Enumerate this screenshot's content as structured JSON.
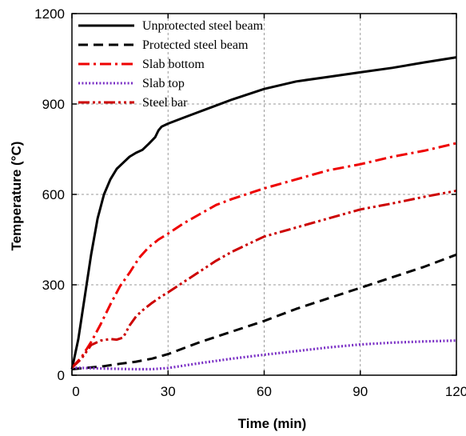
{
  "chart_data": {
    "type": "line",
    "xlabel": "Time (min)",
    "ylabel": "Temperature (°C)",
    "xlim": [
      0,
      120
    ],
    "ylim": [
      0,
      1200
    ],
    "xticks": [
      0,
      30,
      60,
      90,
      120
    ],
    "yticks": [
      0,
      300,
      600,
      900,
      1200
    ],
    "grid": true,
    "legend_position": "top-left",
    "series": [
      {
        "name": "Unprotected steel beam",
        "color": "#000000",
        "style": "solid",
        "x": [
          0,
          2,
          4,
          6,
          8,
          10,
          12,
          14,
          16,
          18,
          20,
          22,
          24,
          26,
          27,
          28,
          30,
          35,
          40,
          50,
          60,
          70,
          80,
          90,
          100,
          110,
          120
        ],
        "y": [
          20,
          120,
          260,
          400,
          520,
          600,
          650,
          685,
          705,
          725,
          738,
          748,
          768,
          790,
          812,
          825,
          835,
          855,
          875,
          915,
          950,
          975,
          990,
          1005,
          1020,
          1038,
          1055
        ]
      },
      {
        "name": "Protected steel beam",
        "color": "#000000",
        "style": "dashed",
        "x": [
          0,
          5,
          10,
          15,
          20,
          25,
          30,
          40,
          50,
          60,
          70,
          80,
          90,
          100,
          110,
          120
        ],
        "y": [
          20,
          25,
          30,
          38,
          45,
          55,
          70,
          110,
          145,
          180,
          220,
          255,
          290,
          325,
          360,
          400
        ]
      },
      {
        "name": "Slab bottom",
        "color": "#ee0000",
        "style": "dashdot",
        "x": [
          0,
          3,
          6,
          9,
          12,
          15,
          18,
          21,
          24,
          27,
          30,
          35,
          40,
          45,
          50,
          60,
          70,
          80,
          90,
          100,
          110,
          120
        ],
        "y": [
          25,
          60,
          110,
          170,
          235,
          295,
          340,
          390,
          425,
          450,
          470,
          505,
          535,
          565,
          585,
          620,
          650,
          680,
          700,
          725,
          745,
          770
        ]
      },
      {
        "name": "Slab top",
        "color": "#7a2fc5",
        "style": "dotted",
        "x": [
          0,
          10,
          20,
          25,
          30,
          40,
          50,
          60,
          70,
          80,
          90,
          100,
          110,
          120
        ],
        "y": [
          25,
          22,
          20,
          20,
          24,
          40,
          55,
          68,
          80,
          92,
          102,
          108,
          112,
          115
        ]
      },
      {
        "name": "Steel bar",
        "color": "#cc0000",
        "style": "dashdotdot",
        "x": [
          0,
          3,
          6,
          9,
          12,
          14,
          16,
          18,
          20,
          22,
          25,
          28,
          30,
          35,
          40,
          45,
          50,
          60,
          70,
          80,
          90,
          100,
          110,
          120
        ],
        "y": [
          25,
          55,
          100,
          115,
          120,
          118,
          125,
          165,
          195,
          215,
          240,
          262,
          275,
          310,
          345,
          380,
          410,
          460,
          490,
          520,
          550,
          570,
          592,
          612
        ]
      }
    ]
  }
}
